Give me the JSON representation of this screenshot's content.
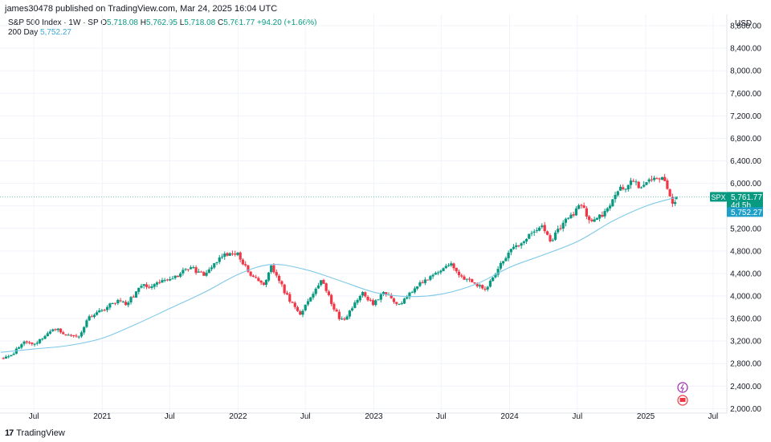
{
  "header": {
    "published": "james30478 published on TradingView.com, Mar 24, 2025 16:04 UTC",
    "symbol": "S&P 500 Index · 1W · SP",
    "open_label": "O",
    "open": "5,718.08",
    "high_label": "H",
    "high": "5,762.95",
    "low_label": "L",
    "low": "5,718.08",
    "close_label": "C",
    "close": "5,761.77",
    "change": "+94.20 (+1.66%)",
    "sma_label": "200 Day",
    "sma_value": "5,752.27"
  },
  "footer": {
    "brand": "TradingView"
  },
  "price_tags": {
    "symbol": "SPX",
    "last": "5,761.77",
    "countdown": "4d 5h",
    "sma": "5,752.27"
  },
  "colors": {
    "up": "#089981",
    "down": "#f23645",
    "sma": "#7ec8e8",
    "grid": "#f0f3fa"
  },
  "chart_data": {
    "type": "candlestick",
    "title": "S&P 500 Index · 1W · SP",
    "currency": "USD",
    "ylim": [
      1920,
      9000
    ],
    "y_ticks": [
      2000,
      2400,
      2800,
      3200,
      3600,
      4000,
      4400,
      4800,
      5200,
      5600,
      6000,
      6400,
      6800,
      7200,
      7600,
      8000,
      8400,
      8800
    ],
    "y_tick_labels": [
      "2,000.00",
      "2,400.00",
      "2,800.00",
      "3,200.00",
      "3,600.00",
      "4,000.00",
      "4,400.00",
      "4,800.00",
      "5,200.00",
      "5,600.00",
      "6,000.00",
      "6,400.00",
      "6,800.00",
      "7,200.00",
      "7,600.00",
      "8,000.00",
      "8,400.00",
      "8,800.00"
    ],
    "x_range": [
      "2020-04-01",
      "2025-08-07"
    ],
    "x_ticks": [
      {
        "date": "2020-07-01",
        "label": "Jul"
      },
      {
        "date": "2021-01-01",
        "label": "2021"
      },
      {
        "date": "2021-07-01",
        "label": "Jul"
      },
      {
        "date": "2022-01-01",
        "label": "2022"
      },
      {
        "date": "2022-07-01",
        "label": "Jul"
      },
      {
        "date": "2023-01-01",
        "label": "2023"
      },
      {
        "date": "2023-07-01",
        "label": "Jul"
      },
      {
        "date": "2024-01-01",
        "label": "2024"
      },
      {
        "date": "2024-07-01",
        "label": "Jul"
      },
      {
        "date": "2025-01-01",
        "label": "2025"
      },
      {
        "date": "2025-07-01",
        "label": "Jul"
      }
    ],
    "close_anchors": [
      [
        "2020-04-03",
        2900
      ],
      [
        "2020-05-01",
        2950
      ],
      [
        "2020-06-05",
        3190
      ],
      [
        "2020-07-03",
        3150
      ],
      [
        "2020-08-14",
        3370
      ],
      [
        "2020-09-04",
        3420
      ],
      [
        "2020-09-25",
        3300
      ],
      [
        "2020-10-30",
        3280
      ],
      [
        "2020-11-27",
        3640
      ],
      [
        "2020-12-31",
        3750
      ],
      [
        "2021-02-12",
        3930
      ],
      [
        "2021-03-05",
        3840
      ],
      [
        "2021-04-16",
        4180
      ],
      [
        "2021-05-14",
        4170
      ],
      [
        "2021-06-25",
        4280
      ],
      [
        "2021-07-30",
        4400
      ],
      [
        "2021-08-27",
        4510
      ],
      [
        "2021-10-01",
        4360
      ],
      [
        "2021-11-19",
        4700
      ],
      [
        "2021-12-31",
        4770
      ],
      [
        "2022-01-28",
        4430
      ],
      [
        "2022-03-11",
        4200
      ],
      [
        "2022-03-31",
        4540
      ],
      [
        "2022-05-20",
        3900
      ],
      [
        "2022-06-17",
        3670
      ],
      [
        "2022-08-12",
        4280
      ],
      [
        "2022-09-30",
        3590
      ],
      [
        "2022-10-14",
        3580
      ],
      [
        "2022-12-02",
        4070
      ],
      [
        "2022-12-30",
        3840
      ],
      [
        "2023-01-27",
        4070
      ],
      [
        "2023-03-10",
        3860
      ],
      [
        "2023-04-28",
        4170
      ],
      [
        "2023-06-16",
        4410
      ],
      [
        "2023-07-28",
        4580
      ],
      [
        "2023-08-18",
        4370
      ],
      [
        "2023-10-27",
        4120
      ],
      [
        "2023-12-29",
        4770
      ],
      [
        "2024-03-28",
        5250
      ],
      [
        "2024-04-19",
        4970
      ],
      [
        "2024-05-24",
        5300
      ],
      [
        "2024-07-12",
        5610
      ],
      [
        "2024-08-02",
        5350
      ],
      [
        "2024-09-06",
        5410
      ],
      [
        "2024-10-18",
        5860
      ],
      [
        "2024-11-29",
        6030
      ],
      [
        "2024-12-20",
        5930
      ],
      [
        "2025-01-24",
        6100
      ],
      [
        "2025-02-14",
        6110
      ],
      [
        "2025-03-07",
        5770
      ],
      [
        "2025-03-14",
        5640
      ],
      [
        "2025-03-21",
        5668
      ],
      [
        "2025-03-24",
        5761.77
      ]
    ],
    "last_candle": {
      "date": "2025-03-24",
      "open": 5718.08,
      "high": 5762.95,
      "low": 5718.08,
      "close": 5761.77
    },
    "sma_anchors": [
      [
        "2020-04-03",
        3000
      ],
      [
        "2020-07-03",
        3060
      ],
      [
        "2020-10-02",
        3120
      ],
      [
        "2021-01-01",
        3250
      ],
      [
        "2021-04-02",
        3500
      ],
      [
        "2021-07-02",
        3780
      ],
      [
        "2021-10-01",
        4060
      ],
      [
        "2022-01-07",
        4400
      ],
      [
        "2022-04-01",
        4560
      ],
      [
        "2022-07-01",
        4470
      ],
      [
        "2022-10-07",
        4260
      ],
      [
        "2023-01-06",
        4060
      ],
      [
        "2023-04-07",
        3990
      ],
      [
        "2023-07-07",
        4040
      ],
      [
        "2023-10-06",
        4220
      ],
      [
        "2024-01-05",
        4520
      ],
      [
        "2024-04-05",
        4740
      ],
      [
        "2024-07-05",
        4980
      ],
      [
        "2024-10-04",
        5330
      ],
      [
        "2025-01-03",
        5600
      ],
      [
        "2025-03-24",
        5752.27
      ]
    ],
    "series": [
      {
        "name": "S&P 500 Index",
        "kind": "candles"
      },
      {
        "name": "200 Day",
        "kind": "line"
      }
    ]
  }
}
